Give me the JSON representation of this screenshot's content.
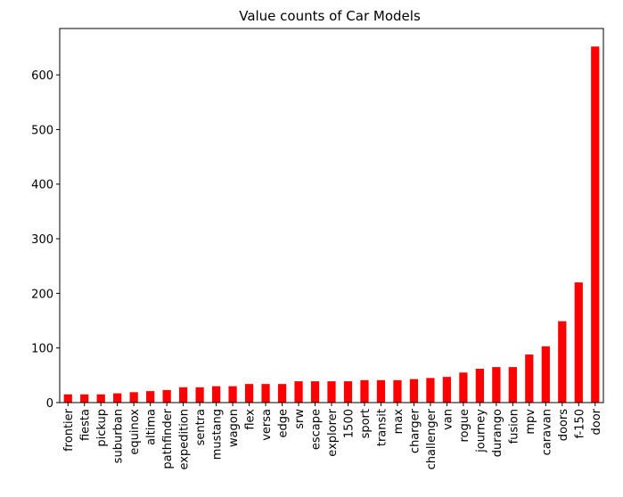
{
  "chart_data": {
    "type": "bar",
    "title": "Value counts of Car Models",
    "xlabel": "",
    "ylabel": "",
    "categories": [
      "frontier",
      "fiesta",
      "pickup",
      "suburban",
      "equinox",
      "altima",
      "pathfinder",
      "expedition",
      "sentra",
      "mustang",
      "wagon",
      "flex",
      "versa",
      "edge",
      "srw",
      "escape",
      "explorer",
      "1500",
      "sport",
      "transit",
      "max",
      "charger",
      "challenger",
      "van",
      "rogue",
      "journey",
      "durango",
      "fusion",
      "mpv",
      "caravan",
      "doors",
      "f-150",
      "door"
    ],
    "values": [
      15,
      15,
      15,
      17,
      19,
      21,
      23,
      28,
      28,
      30,
      30,
      34,
      34,
      34,
      39,
      39,
      39,
      39,
      41,
      41,
      41,
      43,
      45,
      47,
      55,
      62,
      65,
      65,
      88,
      103,
      149,
      220,
      652
    ],
    "yticks": [
      0,
      100,
      200,
      300,
      400,
      500,
      600
    ],
    "ylim": [
      0,
      685
    ],
    "bar_color": "#ff0000",
    "grid": false,
    "legend": "none"
  }
}
